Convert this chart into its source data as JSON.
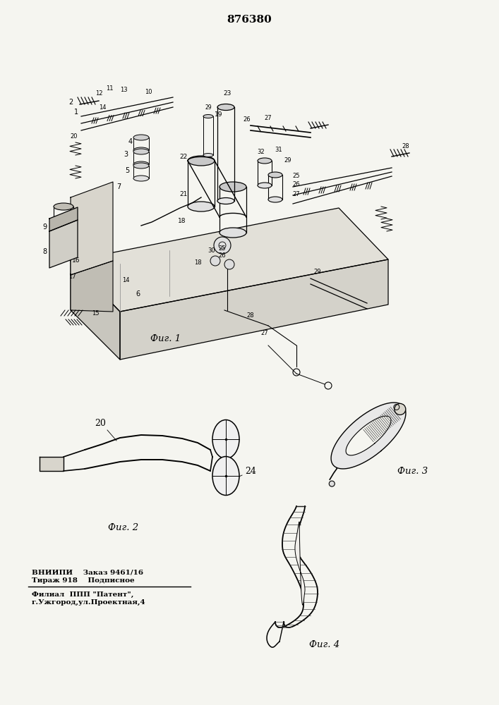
{
  "title": "876380",
  "bg_color": "#f5f5f0",
  "fig1_label": "Фиг. 1",
  "fig2_label": "Фиг. 2",
  "fig3_label": "Фиг. 3",
  "fig4_label": "Фиг. 4",
  "footer_line1": "ВНИИПИ    Заказ 9461/16",
  "footer_line2": "Тираж 918    Подписное",
  "footer_line3": "Филиал  ППП \"Патент\",",
  "footer_line4": "г.Ужгород,ул.Проектная,4"
}
